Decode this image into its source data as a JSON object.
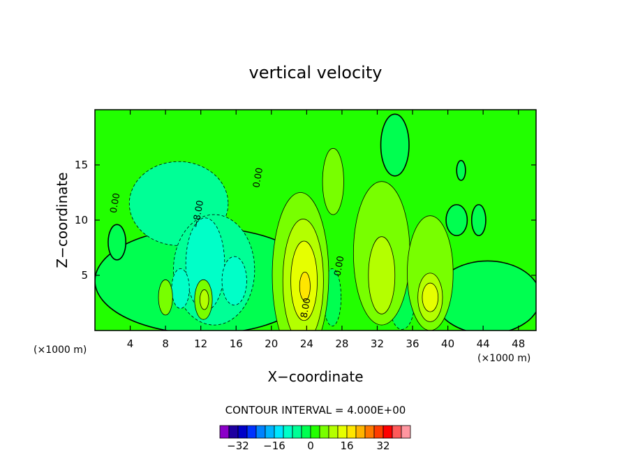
{
  "chart_data": {
    "type": "heatmap",
    "title": "vertical velocity",
    "xlabel": "X−coordinate",
    "ylabel": "Z−coordinate",
    "x_unit_label": "(×1000 m)",
    "x_unit_label_right": "(×1000 m)",
    "xlim": [
      0,
      50
    ],
    "ylim": [
      0,
      20
    ],
    "x_ticks": [
      4,
      8,
      12,
      16,
      20,
      24,
      28,
      32,
      36,
      40,
      44,
      48
    ],
    "y_ticks": [
      5,
      10,
      15
    ],
    "contour_interval_text": "CONTOUR INTERVAL = 4.000E+00",
    "background_color": "#22ff00",
    "contour_labels": [
      {
        "text": "0.00",
        "x": 2.6,
        "y": 11.5,
        "angle": -80
      },
      {
        "text": "−8.00",
        "x": 12.0,
        "y": 10.5,
        "angle": -80
      },
      {
        "text": "0.00",
        "x": 18.8,
        "y": 13.8,
        "angle": -80
      },
      {
        "text": "0.00",
        "x": 28.0,
        "y": 5.8,
        "angle": -80
      },
      {
        "text": "8.00",
        "x": 24.2,
        "y": 2.0,
        "angle": -80
      }
    ],
    "colorbar": {
      "colors": [
        "#8b00c8",
        "#1e00a0",
        "#0000c8",
        "#0032ff",
        "#0082ff",
        "#00b4ff",
        "#00e6ff",
        "#00ffc8",
        "#00ff96",
        "#00ff50",
        "#22ff00",
        "#78ff00",
        "#b4ff00",
        "#e6ff00",
        "#ffe600",
        "#ffb400",
        "#ff7800",
        "#ff3c00",
        "#ff0000",
        "#ff5a5a",
        "#ff96a0"
      ],
      "tick_labels": [
        "−32",
        "−16",
        "0",
        "16",
        "32"
      ],
      "tick_values": [
        -32,
        -16,
        0,
        16,
        32
      ],
      "range": [
        -40,
        44
      ]
    },
    "fields": [
      {
        "kind": "region",
        "level": 0,
        "color": "#00ff50",
        "x": 12.5,
        "y": 4.5,
        "rx": 12.5,
        "ry": 4.8
      },
      {
        "kind": "region",
        "level": 0,
        "color": "#00ff50",
        "x": 44.5,
        "y": 3.0,
        "rx": 6.0,
        "ry": 3.3
      },
      {
        "kind": "region",
        "level": 0,
        "color": "#00ff50",
        "x": 34.0,
        "y": 16.8,
        "rx": 1.6,
        "ry": 2.8
      },
      {
        "kind": "region",
        "level": -4,
        "color": "#00ff96",
        "x": 9.5,
        "y": 11.5,
        "rx": 5.6,
        "ry": 3.8
      },
      {
        "kind": "region",
        "level": -4,
        "color": "#00ff96",
        "x": 13.5,
        "y": 5.5,
        "rx": 4.6,
        "ry": 5.0
      },
      {
        "kind": "region",
        "level": -8,
        "color": "#00ffc8",
        "x": 12.5,
        "y": 6.0,
        "rx": 2.2,
        "ry": 4.2
      },
      {
        "kind": "region",
        "level": -8,
        "color": "#00ffc8",
        "x": 9.7,
        "y": 3.8,
        "rx": 1.0,
        "ry": 1.8
      },
      {
        "kind": "region",
        "level": -8,
        "color": "#00ffc8",
        "x": 15.8,
        "y": 4.5,
        "rx": 1.4,
        "ry": 2.2
      },
      {
        "kind": "region",
        "level": -4,
        "color": "#00ff50",
        "x": 26.9,
        "y": 3.0,
        "rx": 1.0,
        "ry": 2.6
      },
      {
        "kind": "region",
        "level": -4,
        "color": "#00ff50",
        "x": 34.8,
        "y": 2.5,
        "rx": 1.4,
        "ry": 2.4
      },
      {
        "kind": "region",
        "level": 4,
        "color": "#78ff00",
        "x": 23.3,
        "y": 5.0,
        "rx": 3.2,
        "ry": 7.5
      },
      {
        "kind": "region",
        "level": 8,
        "color": "#b4ff00",
        "x": 23.6,
        "y": 4.5,
        "rx": 2.3,
        "ry": 5.6
      },
      {
        "kind": "region",
        "level": 12,
        "color": "#e6ff00",
        "x": 23.7,
        "y": 4.5,
        "rx": 1.5,
        "ry": 3.6
      },
      {
        "kind": "region",
        "level": 16,
        "color": "#ffe600",
        "x": 23.8,
        "y": 4.0,
        "rx": 0.6,
        "ry": 1.3
      },
      {
        "kind": "region",
        "level": 4,
        "color": "#78ff00",
        "x": 32.5,
        "y": 7.0,
        "rx": 3.2,
        "ry": 6.5
      },
      {
        "kind": "region",
        "level": 8,
        "color": "#b4ff00",
        "x": 32.5,
        "y": 5.0,
        "rx": 1.5,
        "ry": 3.5
      },
      {
        "kind": "region",
        "level": 4,
        "color": "#78ff00",
        "x": 38.0,
        "y": 5.2,
        "rx": 2.6,
        "ry": 5.2
      },
      {
        "kind": "region",
        "level": 8,
        "color": "#b4ff00",
        "x": 38.0,
        "y": 3.0,
        "rx": 1.4,
        "ry": 2.2
      },
      {
        "kind": "region",
        "level": 12,
        "color": "#e6ff00",
        "x": 38.0,
        "y": 3.0,
        "rx": 0.9,
        "ry": 1.3
      },
      {
        "kind": "region",
        "level": 4,
        "color": "#78ff00",
        "x": 27.0,
        "y": 13.5,
        "rx": 1.2,
        "ry": 3.0
      },
      {
        "kind": "region",
        "level": 4,
        "color": "#78ff00",
        "x": 8.0,
        "y": 3.0,
        "rx": 0.8,
        "ry": 1.6
      },
      {
        "kind": "region",
        "level": 4,
        "color": "#78ff00",
        "x": 12.3,
        "y": 2.8,
        "rx": 1.0,
        "ry": 1.8
      },
      {
        "kind": "region",
        "level": 8,
        "color": "#b4ff00",
        "x": 12.4,
        "y": 2.8,
        "rx": 0.5,
        "ry": 0.9
      },
      {
        "kind": "region",
        "level": 0,
        "color": "#00ff50",
        "x": 41.0,
        "y": 10.0,
        "rx": 1.2,
        "ry": 1.4
      },
      {
        "kind": "region",
        "level": 0,
        "color": "#00ff50",
        "x": 43.5,
        "y": 10.0,
        "rx": 0.8,
        "ry": 1.4
      },
      {
        "kind": "region",
        "level": 0,
        "color": "#00ff50",
        "x": 41.5,
        "y": 14.5,
        "rx": 0.5,
        "ry": 0.9
      },
      {
        "kind": "region",
        "level": 0,
        "color": "#00ff50",
        "x": 2.5,
        "y": 8.0,
        "rx": 1.0,
        "ry": 1.6
      }
    ]
  }
}
